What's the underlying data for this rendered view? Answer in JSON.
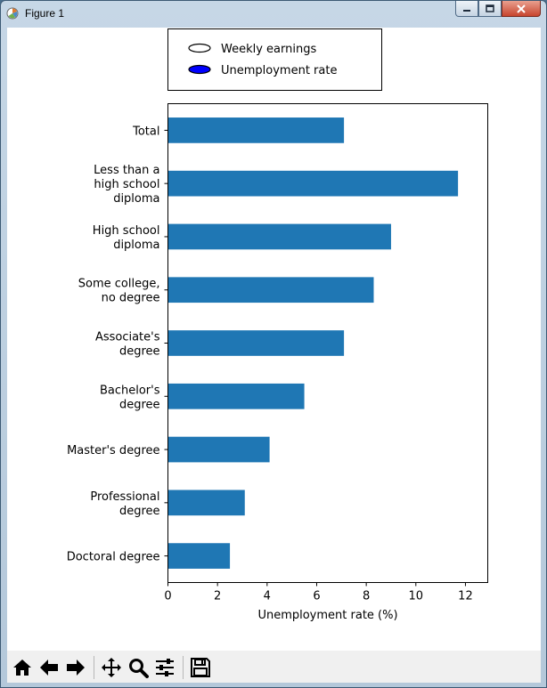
{
  "window": {
    "title": "Figure 1",
    "icons": {
      "app": "matplotlib-figure-icon",
      "minimize": "minimize-icon",
      "maximize": "maximize-icon",
      "close": "close-icon"
    }
  },
  "toolbar": {
    "tools": [
      {
        "name": "home-icon"
      },
      {
        "name": "back-arrow-icon"
      },
      {
        "name": "forward-arrow-icon"
      },
      {
        "name": "pan-icon"
      },
      {
        "name": "zoom-icon"
      },
      {
        "name": "subplots-config-icon"
      },
      {
        "name": "save-icon"
      }
    ]
  },
  "chart_data": {
    "type": "bar",
    "orientation": "horizontal",
    "categories": [
      [
        "Total"
      ],
      [
        "Less than a",
        "high school",
        "diploma"
      ],
      [
        "High school",
        "diploma"
      ],
      [
        "Some college,",
        "no degree"
      ],
      [
        "Associate's",
        "degree"
      ],
      [
        "Bachelor's",
        "degree"
      ],
      [
        "Master's degree"
      ],
      [
        "Professional",
        "degree"
      ],
      [
        "Doctoral degree"
      ]
    ],
    "values": [
      7.1,
      11.7,
      9.0,
      8.3,
      7.1,
      5.5,
      4.1,
      3.1,
      2.5
    ],
    "xlabel": "Unemployment rate (%)",
    "xlim": [
      0,
      12.9
    ],
    "xticks": [
      0,
      2,
      4,
      6,
      8,
      10,
      12
    ],
    "grid": false,
    "bar_color": "#1f77b4",
    "legend": {
      "placement": "top-center, above plot",
      "entries": [
        {
          "label": "Weekly earnings",
          "fill": "#ffffff",
          "marker": "ellipse"
        },
        {
          "label": "Unemployment rate",
          "fill": "#0000ff",
          "marker": "ellipse"
        }
      ]
    }
  }
}
